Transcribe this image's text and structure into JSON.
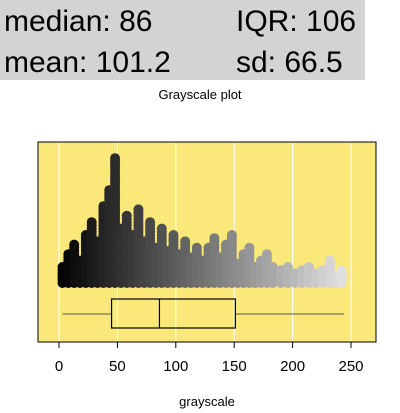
{
  "stats": {
    "median_label": "median: 86",
    "iqr_label": "IQR: 106",
    "mean_label": "mean: 101.2",
    "sd_label": "sd: 66.5"
  },
  "colors": {
    "panel_background": "#fae97a",
    "stats_background": "#d3d3d3"
  },
  "chart_data": {
    "type": "scatter",
    "title": "Grayscale plot",
    "xlabel": "grayscale",
    "ylabel": "",
    "xlim": [
      -15,
      268
    ],
    "xticks": [
      0,
      50,
      100,
      150,
      200,
      250
    ],
    "grid": true,
    "point_style": "stacked dot plot colored by value (black at 0 to light gray at 255)",
    "stacks": [
      {
        "x": 3,
        "count": 6
      },
      {
        "x": 8,
        "count": 10
      },
      {
        "x": 13,
        "count": 13
      },
      {
        "x": 18,
        "count": 8
      },
      {
        "x": 23,
        "count": 16
      },
      {
        "x": 28,
        "count": 20
      },
      {
        "x": 33,
        "count": 14
      },
      {
        "x": 38,
        "count": 25
      },
      {
        "x": 43,
        "count": 30
      },
      {
        "x": 48,
        "count": 40
      },
      {
        "x": 53,
        "count": 18
      },
      {
        "x": 58,
        "count": 22
      },
      {
        "x": 63,
        "count": 16
      },
      {
        "x": 68,
        "count": 24
      },
      {
        "x": 73,
        "count": 14
      },
      {
        "x": 78,
        "count": 20
      },
      {
        "x": 83,
        "count": 12
      },
      {
        "x": 88,
        "count": 18
      },
      {
        "x": 93,
        "count": 11
      },
      {
        "x": 98,
        "count": 16
      },
      {
        "x": 103,
        "count": 10
      },
      {
        "x": 108,
        "count": 14
      },
      {
        "x": 113,
        "count": 9
      },
      {
        "x": 118,
        "count": 12
      },
      {
        "x": 123,
        "count": 8
      },
      {
        "x": 128,
        "count": 12
      },
      {
        "x": 133,
        "count": 15
      },
      {
        "x": 138,
        "count": 9
      },
      {
        "x": 143,
        "count": 13
      },
      {
        "x": 148,
        "count": 16
      },
      {
        "x": 153,
        "count": 7
      },
      {
        "x": 158,
        "count": 10
      },
      {
        "x": 163,
        "count": 12
      },
      {
        "x": 168,
        "count": 6
      },
      {
        "x": 173,
        "count": 8
      },
      {
        "x": 178,
        "count": 10
      },
      {
        "x": 183,
        "count": 6
      },
      {
        "x": 190,
        "count": 5
      },
      {
        "x": 196,
        "count": 6
      },
      {
        "x": 202,
        "count": 4
      },
      {
        "x": 208,
        "count": 5
      },
      {
        "x": 214,
        "count": 6
      },
      {
        "x": 220,
        "count": 4
      },
      {
        "x": 226,
        "count": 5
      },
      {
        "x": 232,
        "count": 8
      },
      {
        "x": 237,
        "count": 3
      },
      {
        "x": 242,
        "count": 5
      }
    ],
    "boxplot": {
      "min": 3,
      "q1": 45,
      "median": 86,
      "q3": 151,
      "max": 244
    }
  }
}
